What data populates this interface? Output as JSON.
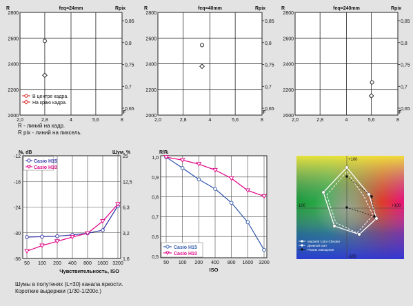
{
  "chart_data": [
    {
      "type": "scatter",
      "title": "feq=24mm",
      "ylabel_left": "R",
      "ylabel_right": "Rpix",
      "xlabel": "F",
      "x_ticks": [
        "2,0",
        "2,8",
        "4",
        "5,6",
        "8"
      ],
      "y_ticks": [
        "2000",
        "2200",
        "2400",
        "2600",
        "2800"
      ],
      "y2_ticks": [
        "0,65",
        "0,7",
        "0,75",
        "0,8",
        "0,85"
      ],
      "xlim": [
        2.0,
        8.0
      ],
      "ylim": [
        2000,
        2800
      ],
      "series": [
        {
          "name": "В центре кадра.",
          "marker": "circle",
          "points": [
            {
              "x": 2.8,
              "y": 2578
            }
          ]
        },
        {
          "name": "На краю кадра.",
          "marker": "diamond",
          "points": [
            {
              "x": 2.8,
              "y": 2310
            }
          ]
        }
      ],
      "notes": [
        "R - линий на кадр.",
        "R pix - линий на пиксель."
      ]
    },
    {
      "type": "scatter",
      "title": "feq=40mm",
      "ylabel_left": "R",
      "ylabel_right": "Rpix",
      "xlabel": "F",
      "x_ticks": [
        "2,0",
        "2,8",
        "4",
        "5,6",
        "8"
      ],
      "y_ticks": [
        "2000",
        "2200",
        "2400",
        "2600",
        "2800"
      ],
      "y2_ticks": [
        "0,65",
        "0,7",
        "0,75",
        "0,8",
        "0,85"
      ],
      "xlim": [
        2.0,
        8.0
      ],
      "ylim": [
        2000,
        2800
      ],
      "series": [
        {
          "marker": "circle",
          "points": [
            {
              "x": 3.6,
              "y": 2545
            }
          ]
        },
        {
          "marker": "diamond",
          "points": [
            {
              "x": 3.6,
              "y": 2380
            }
          ]
        }
      ]
    },
    {
      "type": "scatter",
      "title": "feq=240mm",
      "ylabel_left": "R",
      "ylabel_right": "Rpix",
      "xlabel": "F",
      "x_ticks": [
        "2,0",
        "2,8",
        "4",
        "5,6",
        "8"
      ],
      "y_ticks": [
        "2000",
        "2200",
        "2400",
        "2600",
        "2800"
      ],
      "y2_ticks": [
        "0,65",
        "0,7",
        "0,75",
        "0,8",
        "0,85"
      ],
      "xlim": [
        2.0,
        8.0
      ],
      "ylim": [
        2000,
        2800
      ],
      "series": [
        {
          "marker": "circle",
          "points": [
            {
              "x": 5.65,
              "y": 2255
            }
          ]
        },
        {
          "marker": "diamond",
          "points": [
            {
              "x": 5.6,
              "y": 2150
            }
          ]
        }
      ]
    },
    {
      "type": "line",
      "ylabel_left": "Nₗ, dB",
      "ylabel_right": "Шум, %",
      "xlabel": "Чувствительность, ISO",
      "categories": [
        "50",
        "100",
        "200",
        "400",
        "800",
        "1600",
        "3200"
      ],
      "y_ticks": [
        "-12",
        "-18",
        "-24",
        "-30",
        "-36"
      ],
      "y2_ticks": [
        "25",
        "12,5",
        "6,3",
        "3,2",
        "1,6"
      ],
      "ylim": [
        -36,
        -12
      ],
      "series": [
        {
          "name": "Casio H15",
          "color": "#3a3aa8",
          "marker": "circle",
          "values": [
            -31.0,
            -30.9,
            -30.8,
            -30.5,
            -30.1,
            -29.4,
            -23.7
          ]
        },
        {
          "name": "Casio H10",
          "color": "#e0108a",
          "marker": "triangle-down",
          "values": [
            -34.3,
            -33.0,
            -32.0,
            -31.0,
            -30.1,
            -27.3,
            -23.3
          ]
        }
      ],
      "notes": [
        "Шумы в полутенях (L=30) канала яркости.",
        "Короткие выдержки (1/30-1/200с.)"
      ]
    },
    {
      "type": "line",
      "ylabel_left": "R/Rₗ",
      "xlabel": "ISO",
      "categories": [
        "50",
        "100",
        "200",
        "400",
        "800",
        "1600",
        "3200"
      ],
      "y_ticks": [
        "1,0",
        "0,9",
        "0,8",
        "0,7",
        "0,6",
        "0,5"
      ],
      "ylim": [
        0.5,
        1.0
      ],
      "series": [
        {
          "name": "Casio H15",
          "color": "#3a5fb0",
          "marker": "circle",
          "values": [
            1.0,
            0.945,
            0.888,
            0.84,
            0.77,
            0.672,
            0.533
          ]
        },
        {
          "name": "Casio H10",
          "color": "#e0108a",
          "marker": "triangle-down",
          "values": [
            1.0,
            0.985,
            0.965,
            0.935,
            0.893,
            0.832,
            0.803
          ]
        }
      ]
    }
  ],
  "gamut": {
    "ticks": {
      "top": "+100",
      "left": "-100",
      "right": "+100",
      "bottom": "-100"
    },
    "legend": [
      "Macbeth Color Checker",
      "Дневной свет",
      "Режим освещения"
    ]
  }
}
